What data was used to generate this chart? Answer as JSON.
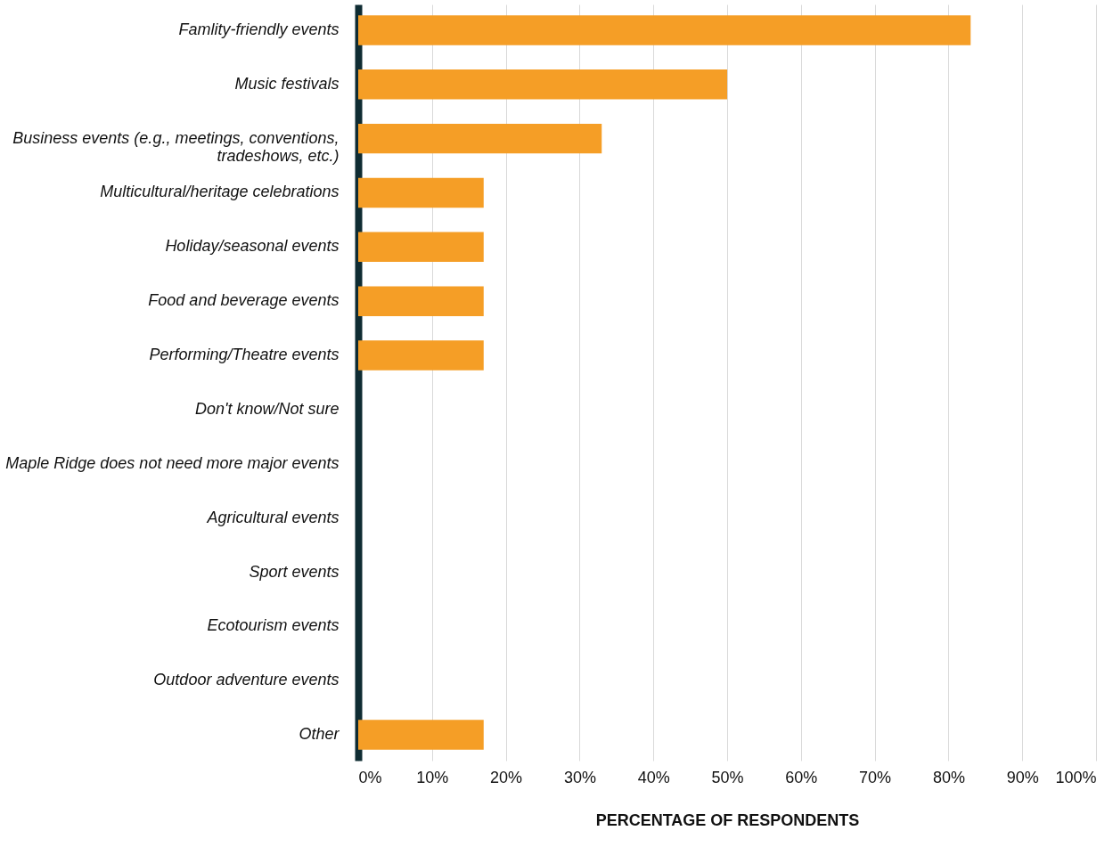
{
  "chart_data": {
    "type": "bar",
    "orientation": "horizontal",
    "xlabel": "PERCENTAGE OF RESPONDENTS",
    "categories": [
      "Famlity-friendly events",
      "Music festivals",
      "Business events (e.g., meetings, conventions, tradeshows, etc.)",
      "Multicultural/heritage celebrations",
      "Holiday/seasonal events",
      "Food and beverage events",
      "Performing/Theatre events",
      "Don't know/Not sure",
      "Maple Ridge does not need more major events",
      "Agricultural events",
      "Sport events",
      "Ecotourism events",
      "Outdoor adventure events",
      "Other"
    ],
    "values": [
      83,
      50,
      33,
      17,
      17,
      17,
      17,
      0,
      0,
      0,
      0,
      0,
      0,
      17
    ],
    "color": "#f59e26",
    "xlim": [
      0,
      100
    ],
    "xticks": [
      {
        "value": 0,
        "label": "0%"
      },
      {
        "value": 10,
        "label": "10%"
      },
      {
        "value": 20,
        "label": "20%"
      },
      {
        "value": 30,
        "label": "30%"
      },
      {
        "value": 40,
        "label": "40%"
      },
      {
        "value": 50,
        "label": "50%"
      },
      {
        "value": 60,
        "label": "60%"
      },
      {
        "value": 70,
        "label": "70%"
      },
      {
        "value": 80,
        "label": "80%"
      },
      {
        "value": 90,
        "label": "90%"
      },
      {
        "value": 100,
        "label": "100%"
      }
    ],
    "grid": "x"
  }
}
